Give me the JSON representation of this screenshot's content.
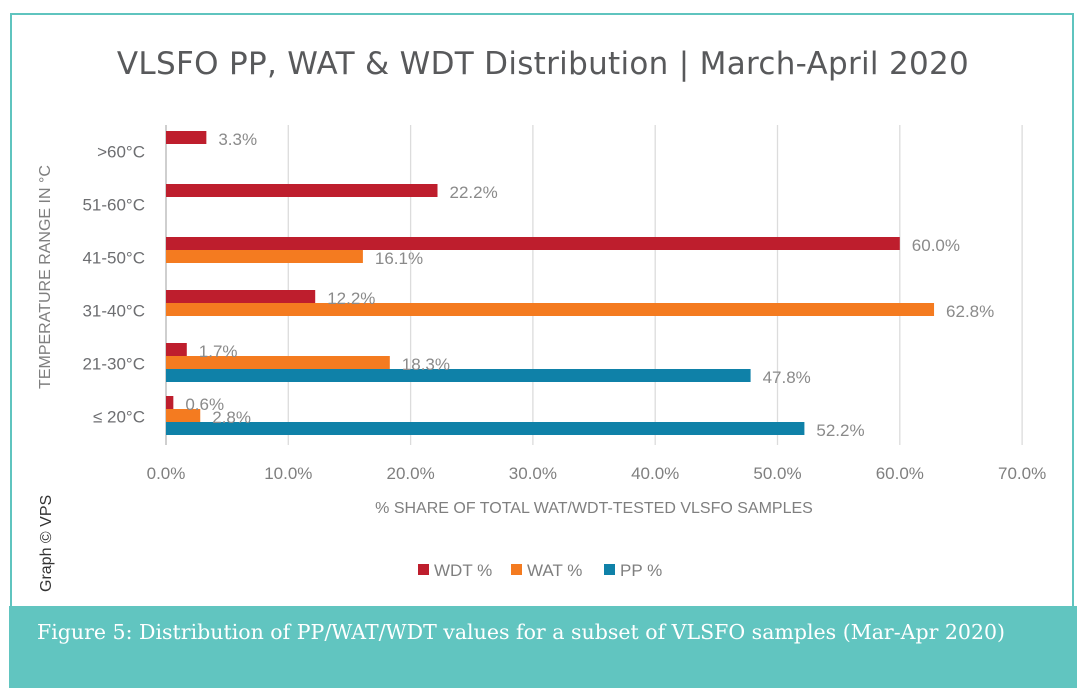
{
  "page": {
    "title": "VLSFO PP, WAT & WDT Distribution | March-April 2020",
    "credit": "Graph © VPS",
    "caption": "Figure 5: Distribution of PP/WAT/WDT values for a subset of VLSFO samples (Mar-Apr 2020)"
  },
  "chart_data": {
    "type": "bar",
    "orientation": "horizontal",
    "title": "VLSFO PP, WAT & WDT Distribution | March-April 2020",
    "xlabel": "% SHARE OF TOTAL WAT/WDT-TESTED VLSFO SAMPLES",
    "ylabel": "TEMPERATURE RANGE IN °C",
    "categories": [
      ">60°C",
      "51-60°C",
      "41-50°C",
      "31-40°C",
      "21-30°C",
      "≤ 20°C"
    ],
    "xlim": [
      0,
      70
    ],
    "xticks": [
      0,
      10,
      20,
      30,
      40,
      50,
      60,
      70
    ],
    "xtick_labels": [
      "0.0%",
      "10.0%",
      "20.0%",
      "30.0%",
      "40.0%",
      "50.0%",
      "60.0%",
      "70.0%"
    ],
    "grid": true,
    "legend_position": "bottom",
    "series": [
      {
        "name": "WDT %",
        "color": "#be1e2d",
        "values": [
          3.3,
          22.2,
          60.0,
          12.2,
          1.7,
          0.6
        ],
        "labels": [
          "3.3%",
          "22.2%",
          "60.0%",
          "12.2%",
          "1.7%",
          "0.6%"
        ]
      },
      {
        "name": "WAT %",
        "color": "#f47b20",
        "values": [
          null,
          null,
          16.1,
          62.8,
          18.3,
          2.8
        ],
        "labels": [
          null,
          null,
          "16.1%",
          "62.8%",
          "18.3%",
          "2.8%"
        ]
      },
      {
        "name": "PP %",
        "color": "#0f81a8",
        "values": [
          null,
          null,
          null,
          null,
          47.8,
          52.2
        ],
        "labels": [
          null,
          null,
          null,
          null,
          "47.8%",
          "52.2%"
        ]
      }
    ]
  }
}
